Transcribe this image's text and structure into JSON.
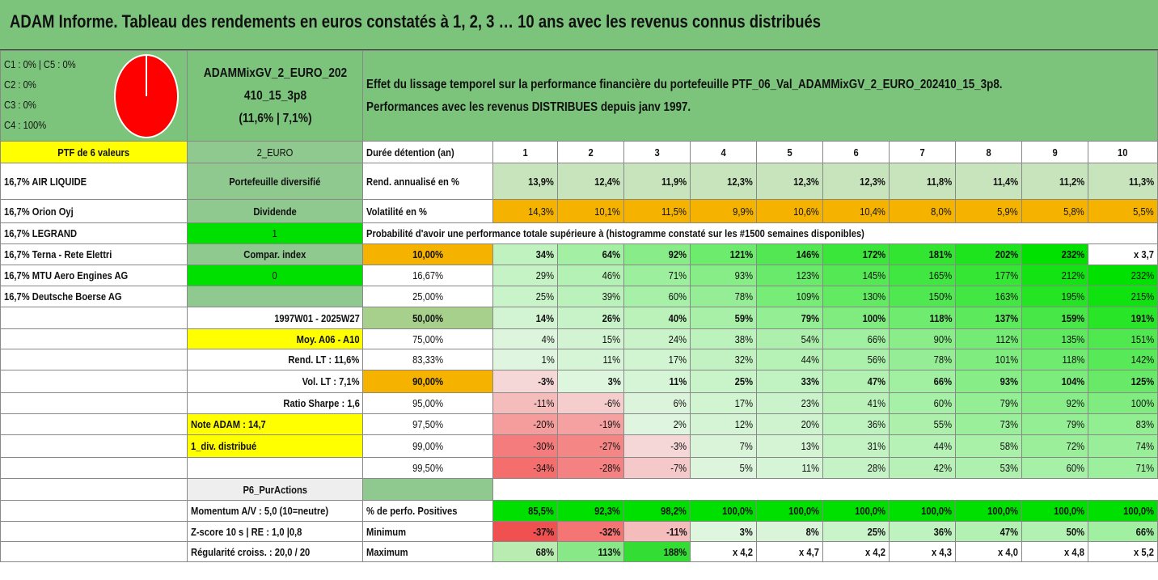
{
  "title": "ADAM Informe. Tableau des rendements en euros constatés à 1, 2, 3 … 10 ans avec les revenus connus distribués",
  "allocation": {
    "line1": "C1 : 0% | C5 : 0%",
    "line2": "C2 : 0%",
    "line3": "C3 : 0%",
    "line4": "C4 : 100%"
  },
  "pie_color": "#ff0000",
  "portfolio_name": {
    "line1": "ADAMMixGV_2_EURO_202",
    "line2": "410_15_3p8",
    "line3": "(11,6% | 7,1%)"
  },
  "description": {
    "line1": "Effet du lissage temporel sur la performance financière du portefeuille PTF_06_Val_ADAMMixGV_2_EURO_202410_15_3p8.",
    "line2": "Performances avec les revenus DISTRIBUES depuis janv 1997."
  },
  "left_col": [
    "PTF de 6 valeurs",
    "16,7% AIR LIQUIDE",
    "16,7% Orion Oyj",
    "16,7% LEGRAND",
    "16,7% Terna - Rete Elettri",
    "16,7% MTU Aero Engines AG",
    "16,7% Deutsche Boerse AG"
  ],
  "mid_col": [
    "2_EURO",
    "Portefeuille diversifié",
    "Dividende",
    "1",
    "Compar. index",
    "0",
    "",
    "1997W01 - 2025W27",
    "Moy. A06 - A10",
    "Rend. LT : 11,6%",
    "Vol. LT : 7,1%",
    "Ratio Sharpe : 1,6",
    "Note ADAM : 14,7",
    "1_div. distribué",
    "",
    "P6_PurActions"
  ],
  "header": {
    "label": "Durée détention (an)",
    "years": [
      "1",
      "2",
      "3",
      "4",
      "5",
      "6",
      "7",
      "8",
      "9",
      "10"
    ]
  },
  "rend": {
    "label": "Rend. annualisé en %",
    "values": [
      "13,9%",
      "12,4%",
      "11,9%",
      "12,3%",
      "12,3%",
      "12,3%",
      "11,8%",
      "11,4%",
      "11,2%",
      "11,3%"
    ]
  },
  "vol": {
    "label": "Volatilité en %",
    "values": [
      "14,3%",
      "10,1%",
      "11,5%",
      "9,9%",
      "10,6%",
      "10,4%",
      "8,0%",
      "5,9%",
      "5,8%",
      "5,5%"
    ]
  },
  "proba_label": "Probabilité d'avoir une performance totale supérieure à (histogramme constaté sur les #1500 semaines disponibles)",
  "proba_rows": [
    {
      "p": "10,00%",
      "v": [
        "34%",
        "64%",
        "92%",
        "121%",
        "146%",
        "172%",
        "181%",
        "202%",
        "232%",
        "x 3,7"
      ]
    },
    {
      "p": "16,67%",
      "v": [
        "29%",
        "46%",
        "71%",
        "93%",
        "123%",
        "145%",
        "165%",
        "177%",
        "212%",
        "232%"
      ]
    },
    {
      "p": "25,00%",
      "v": [
        "25%",
        "39%",
        "60%",
        "78%",
        "109%",
        "130%",
        "150%",
        "163%",
        "195%",
        "215%"
      ]
    },
    {
      "p": "50,00%",
      "v": [
        "14%",
        "26%",
        "40%",
        "59%",
        "79%",
        "100%",
        "118%",
        "137%",
        "159%",
        "191%"
      ]
    },
    {
      "p": "75,00%",
      "v": [
        "4%",
        "15%",
        "24%",
        "38%",
        "54%",
        "66%",
        "90%",
        "112%",
        "135%",
        "151%"
      ]
    },
    {
      "p": "83,33%",
      "v": [
        "1%",
        "11%",
        "17%",
        "32%",
        "44%",
        "56%",
        "78%",
        "101%",
        "118%",
        "142%"
      ]
    },
    {
      "p": "90,00%",
      "v": [
        "-3%",
        "3%",
        "11%",
        "25%",
        "33%",
        "47%",
        "66%",
        "93%",
        "104%",
        "125%"
      ]
    },
    {
      "p": "95,00%",
      "v": [
        "-11%",
        "-6%",
        "6%",
        "17%",
        "23%",
        "41%",
        "60%",
        "79%",
        "92%",
        "100%"
      ]
    },
    {
      "p": "97,50%",
      "v": [
        "-20%",
        "-19%",
        "2%",
        "12%",
        "20%",
        "36%",
        "55%",
        "73%",
        "79%",
        "83%"
      ]
    },
    {
      "p": "99,00%",
      "v": [
        "-30%",
        "-27%",
        "-3%",
        "7%",
        "13%",
        "31%",
        "44%",
        "58%",
        "72%",
        "74%"
      ]
    },
    {
      "p": "99,50%",
      "v": [
        "-34%",
        "-28%",
        "-7%",
        "5%",
        "11%",
        "28%",
        "42%",
        "53%",
        "60%",
        "71%"
      ]
    }
  ],
  "stats_left": [
    "Momentum A/V : 5,0 (10=neutre)",
    "Z-score 10 s | RE : 1,0 |0,8",
    "Régularité croiss. : 20,0 / 20"
  ],
  "positives": {
    "label": "% de perfo. Positives",
    "values": [
      "85,5%",
      "92,3%",
      "98,2%",
      "100,0%",
      "100,0%",
      "100,0%",
      "100,0%",
      "100,0%",
      "100,0%",
      "100,0%"
    ]
  },
  "minimum": {
    "label": "Minimum",
    "values": [
      "-37%",
      "-32%",
      "-11%",
      "3%",
      "8%",
      "25%",
      "36%",
      "47%",
      "50%",
      "66%"
    ]
  },
  "maximum": {
    "label": "Maximum",
    "values": [
      "68%",
      "113%",
      "188%",
      "x 4,2",
      "x 4,7",
      "x 4,2",
      "x 4,3",
      "x 4,0",
      "x 4,8",
      "x 5,2"
    ]
  },
  "colors": {
    "green_header": "#7cc47c",
    "yellow": "#ffff00",
    "orange": "#f5b300",
    "bright_green": "#00e000",
    "red_text": "#e02020",
    "neg_cell": "#f07070"
  }
}
